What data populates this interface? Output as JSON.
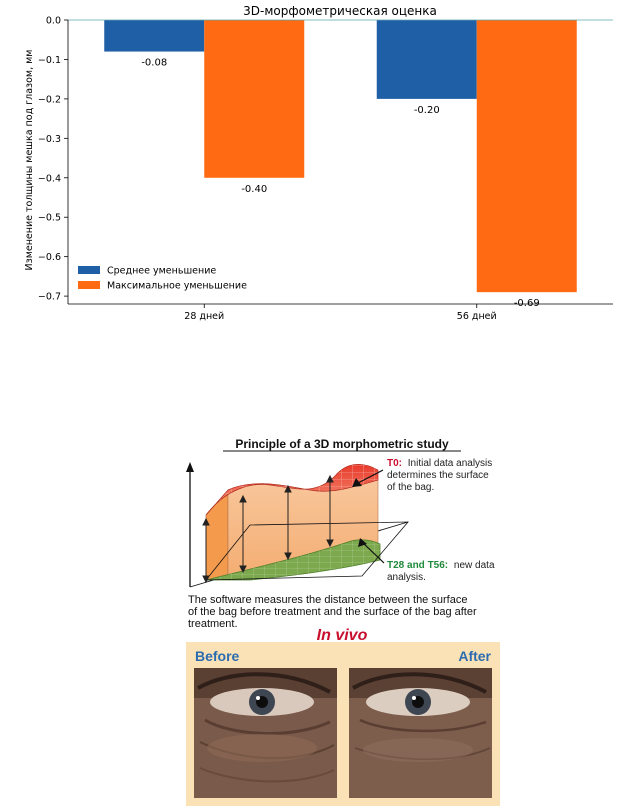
{
  "chart_data": {
    "type": "bar",
    "title": "3D-морфометрическая оценка",
    "ylabel": "Изменение толщины мешка под глазом, мм",
    "xlabel": "",
    "categories": [
      "28 дней",
      "56 дней"
    ],
    "series": [
      {
        "name": "Среднее уменьшение",
        "values": [
          -0.08,
          -0.2
        ],
        "labels": [
          "-0.08",
          "-0.20"
        ],
        "color": "#1f5fa6"
      },
      {
        "name": "Максимальное уменьшение",
        "values": [
          -0.4,
          -0.69
        ],
        "labels": [
          "-0.40",
          "-0.69"
        ],
        "color": "#ff6a13"
      }
    ],
    "ylim": [
      -0.72,
      0.0
    ],
    "yticks": [
      0.0,
      -0.1,
      -0.2,
      -0.3,
      -0.4,
      -0.5,
      -0.6,
      -0.7
    ],
    "yticklabels": [
      "0.0",
      "−0.1",
      "−0.2",
      "−0.3",
      "−0.4",
      "−0.5",
      "−0.6",
      "−0.7"
    ],
    "grid": false,
    "legend_position": "lower-left"
  },
  "infographic": {
    "title": "Principle of a 3D morphometric study",
    "t0": {
      "tag": "T0:",
      "text": [
        "Initial data analysis",
        "determines the surface",
        "of the bag."
      ]
    },
    "t28": {
      "tag": "T28 and T56:",
      "text": [
        "new data",
        "analysis."
      ]
    },
    "caption": [
      "The software measures the distance between the surface",
      "of the bag before treatment and the surface of the bag after",
      "treatment."
    ],
    "in_vivo": "In vivo",
    "before": "Before",
    "after": "After",
    "colors": {
      "t0_tag": "#c8102e",
      "t28_tag": "#1f8a3a",
      "panel_label": "#2b6cb0",
      "in_vivo": "#c8102e",
      "panel_bg": "#fbe2b6"
    }
  }
}
